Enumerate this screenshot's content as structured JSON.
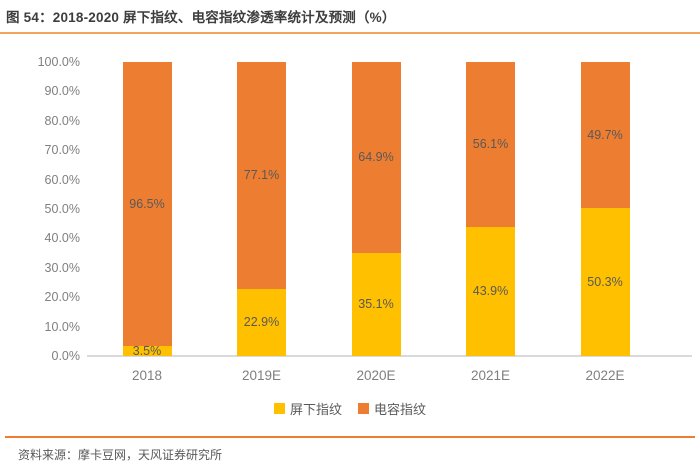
{
  "figure": {
    "title": "图 54：2018-2020 屏下指纹、电容指纹渗透率统计及预测（%）",
    "source": "资料来源：摩卡豆网，天风证券研究所"
  },
  "colors": {
    "underscreen_series": "#FFC000",
    "capacitive_series": "#ED7D31",
    "title_rule": "#F2A45F",
    "source_rule": "#ED7D31",
    "axis_text": "#7F7F7F",
    "data_label_text": "#595959",
    "baseline": "#D9D9D9"
  },
  "chart_data": {
    "type": "bar",
    "stacked": true,
    "title": "2018-2020 屏下指纹、电容指纹渗透率统计及预测（%）",
    "categories": [
      "2018",
      "2019E",
      "2020E",
      "2021E",
      "2022E"
    ],
    "series": [
      {
        "name": "屏下指纹",
        "color": "#FFC000",
        "values": [
          3.5,
          22.9,
          35.1,
          43.9,
          50.3
        ],
        "labels": [
          "3.5%",
          "22.9%",
          "35.1%",
          "43.9%",
          "50.3%"
        ]
      },
      {
        "name": "电容指纹",
        "color": "#ED7D31",
        "values": [
          96.5,
          77.1,
          64.9,
          56.1,
          49.7
        ],
        "labels": [
          "96.5%",
          "77.1%",
          "64.9%",
          "56.1%",
          "49.7%"
        ]
      }
    ],
    "xlabel": "",
    "ylabel": "",
    "ylim": [
      0,
      100
    ],
    "ytick_step": 10,
    "ytick_labels": [
      "0.0%",
      "10.0%",
      "20.0%",
      "30.0%",
      "40.0%",
      "50.0%",
      "60.0%",
      "70.0%",
      "80.0%",
      "90.0%",
      "100.0%"
    ],
    "grid": false,
    "legend_position": "bottom"
  }
}
